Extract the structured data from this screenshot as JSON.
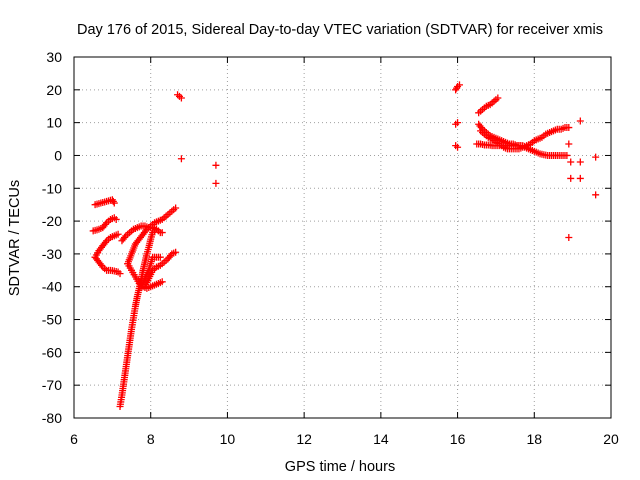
{
  "chart_data": {
    "type": "scatter",
    "title": "Day 176 of 2015, Sidereal Day-to-day VTEC variation (SDTVAR) for receiver xmis",
    "xlabel": "GPS time / hours",
    "ylabel": "SDTVAR / TECUs",
    "xlim": [
      6,
      20
    ],
    "ylim": [
      -80,
      30
    ],
    "xticks": [
      "6",
      "8",
      "10",
      "12",
      "14",
      "16",
      "18",
      "20"
    ],
    "yticks": [
      "-80",
      "-70",
      "-60",
      "-50",
      "-40",
      "-30",
      "-20",
      "-10",
      "0",
      "10",
      "20",
      "30"
    ],
    "grid": true,
    "marker": "+",
    "marker_color": "#ff0000",
    "segments": [
      {
        "points": [
          [
            6.55,
            -15
          ],
          [
            6.7,
            -14.5
          ],
          [
            6.85,
            -14
          ],
          [
            7.0,
            -13.5
          ],
          [
            7.05,
            -14.5
          ]
        ]
      },
      {
        "points": [
          [
            6.5,
            -23
          ],
          [
            6.65,
            -22.5
          ],
          [
            6.75,
            -22
          ],
          [
            6.85,
            -20.5
          ],
          [
            6.95,
            -19.5
          ],
          [
            7.05,
            -19
          ],
          [
            7.1,
            -19.5
          ]
        ]
      },
      {
        "points": [
          [
            6.55,
            -31
          ],
          [
            6.65,
            -32.5
          ],
          [
            6.75,
            -34
          ],
          [
            6.85,
            -35
          ],
          [
            6.95,
            -35
          ],
          [
            7.05,
            -35.2
          ],
          [
            7.15,
            -35.5
          ],
          [
            7.2,
            -36
          ]
        ]
      },
      {
        "points": [
          [
            6.55,
            -31
          ],
          [
            6.65,
            -29
          ],
          [
            6.75,
            -27.5
          ],
          [
            6.85,
            -26
          ],
          [
            6.95,
            -25
          ],
          [
            7.05,
            -24.5
          ],
          [
            7.15,
            -24
          ]
        ]
      },
      {
        "points": [
          [
            7.25,
            -26
          ],
          [
            7.35,
            -24.5
          ],
          [
            7.45,
            -23.5
          ],
          [
            7.55,
            -22.5
          ],
          [
            7.65,
            -22
          ],
          [
            7.75,
            -21.5
          ],
          [
            7.85,
            -21.5
          ],
          [
            7.95,
            -22
          ],
          [
            8.05,
            -22
          ],
          [
            8.15,
            -22.5
          ],
          [
            8.25,
            -23.5
          ],
          [
            8.3,
            -23.5
          ]
        ]
      },
      {
        "points": [
          [
            7.4,
            -33
          ],
          [
            7.5,
            -30
          ],
          [
            7.6,
            -27
          ],
          [
            7.7,
            -25.5
          ],
          [
            7.8,
            -24
          ],
          [
            7.9,
            -22.5
          ],
          [
            8.0,
            -21.5
          ],
          [
            8.1,
            -20.5
          ],
          [
            8.2,
            -20
          ],
          [
            8.3,
            -19.5
          ],
          [
            8.4,
            -18.5
          ],
          [
            8.5,
            -17.5
          ],
          [
            8.6,
            -16.5
          ],
          [
            8.65,
            -16
          ]
        ]
      },
      {
        "points": [
          [
            7.4,
            -33
          ],
          [
            7.5,
            -35
          ],
          [
            7.6,
            -37
          ],
          [
            7.7,
            -39
          ],
          [
            7.8,
            -40
          ],
          [
            7.9,
            -40.5
          ],
          [
            8.0,
            -40
          ],
          [
            8.1,
            -39.5
          ],
          [
            8.2,
            -39
          ],
          [
            8.3,
            -38.5
          ]
        ]
      },
      {
        "points": [
          [
            7.75,
            -40
          ],
          [
            7.85,
            -37.5
          ],
          [
            7.95,
            -35
          ],
          [
            8.0,
            -33
          ],
          [
            8.05,
            -31
          ],
          [
            8.15,
            -31
          ],
          [
            8.25,
            -31
          ]
        ]
      },
      {
        "points": [
          [
            7.85,
            -40
          ],
          [
            7.95,
            -37.5
          ],
          [
            8.05,
            -35
          ],
          [
            8.15,
            -34
          ],
          [
            8.25,
            -33.5
          ],
          [
            8.35,
            -32.5
          ],
          [
            8.45,
            -31.5
          ],
          [
            8.55,
            -30
          ],
          [
            8.65,
            -29.5
          ]
        ]
      },
      {
        "points": [
          [
            7.2,
            -76.5
          ],
          [
            7.25,
            -73
          ],
          [
            7.3,
            -69
          ],
          [
            7.35,
            -65
          ],
          [
            7.4,
            -61
          ],
          [
            7.45,
            -57
          ],
          [
            7.5,
            -53
          ],
          [
            7.55,
            -49.5
          ],
          [
            7.6,
            -46
          ],
          [
            7.65,
            -43
          ],
          [
            7.7,
            -40.5
          ],
          [
            7.75,
            -38
          ],
          [
            7.8,
            -35
          ],
          [
            7.85,
            -32.5
          ],
          [
            7.9,
            -30
          ],
          [
            7.95,
            -28
          ],
          [
            8.0,
            -25.5
          ],
          [
            8.05,
            -23.5
          ],
          [
            8.1,
            -23
          ]
        ]
      },
      {
        "points": [
          [
            8.7,
            18.5
          ],
          [
            8.75,
            18
          ],
          [
            8.8,
            17.5
          ]
        ]
      },
      {
        "points": [
          [
            8.8,
            -1
          ]
        ]
      },
      {
        "points": [
          [
            9.7,
            -3
          ]
        ]
      },
      {
        "points": [
          [
            9.7,
            -8.5
          ]
        ]
      },
      {
        "points": [
          [
            15.95,
            20
          ],
          [
            16.0,
            21
          ],
          [
            16.05,
            21.5
          ]
        ]
      },
      {
        "points": [
          [
            15.95,
            9.5
          ],
          [
            16.0,
            10
          ]
        ]
      },
      {
        "points": [
          [
            15.95,
            3
          ],
          [
            16.0,
            2.5
          ]
        ]
      },
      {
        "points": [
          [
            16.55,
            13
          ],
          [
            16.65,
            14
          ],
          [
            16.75,
            15
          ],
          [
            16.85,
            15.5
          ],
          [
            16.95,
            16.5
          ],
          [
            17.05,
            17.5
          ]
        ]
      },
      {
        "points": [
          [
            16.55,
            9.5
          ],
          [
            16.65,
            8
          ],
          [
            16.75,
            7
          ],
          [
            16.85,
            6
          ],
          [
            16.95,
            5.5
          ],
          [
            17.05,
            5
          ],
          [
            17.15,
            4.5
          ],
          [
            17.25,
            4
          ],
          [
            17.35,
            3.5
          ],
          [
            17.45,
            3.5
          ],
          [
            17.55,
            3
          ],
          [
            17.65,
            3
          ],
          [
            17.75,
            2.5
          ],
          [
            17.85,
            2
          ],
          [
            17.95,
            1.5
          ],
          [
            18.05,
            1
          ],
          [
            18.15,
            0.5
          ],
          [
            18.25,
            0.2
          ],
          [
            18.35,
            0
          ],
          [
            18.45,
            0
          ],
          [
            18.55,
            0
          ],
          [
            18.65,
            0
          ],
          [
            18.75,
            0
          ],
          [
            18.85,
            0
          ]
        ]
      },
      {
        "points": [
          [
            16.6,
            7.5
          ],
          [
            16.7,
            6.5
          ],
          [
            16.8,
            5.5
          ],
          [
            16.9,
            5
          ],
          [
            17.0,
            4
          ],
          [
            17.1,
            3.5
          ],
          [
            17.2,
            2.5
          ],
          [
            17.3,
            2
          ],
          [
            17.4,
            2
          ],
          [
            17.5,
            2
          ],
          [
            17.6,
            2
          ],
          [
            17.7,
            2.5
          ],
          [
            17.8,
            3
          ],
          [
            17.9,
            3.5
          ],
          [
            18.0,
            4.5
          ],
          [
            18.1,
            5
          ],
          [
            18.2,
            5.5
          ],
          [
            18.3,
            6.5
          ],
          [
            18.4,
            7
          ],
          [
            18.5,
            7.5
          ],
          [
            18.6,
            8
          ],
          [
            18.7,
            8
          ],
          [
            18.8,
            8.5
          ],
          [
            18.9,
            8.5
          ]
        ]
      },
      {
        "points": [
          [
            16.5,
            3.5
          ],
          [
            16.6,
            3.5
          ],
          [
            16.7,
            3.2
          ],
          [
            16.8,
            3.2
          ],
          [
            16.9,
            3
          ],
          [
            17.0,
            3
          ],
          [
            17.1,
            3
          ],
          [
            17.2,
            3
          ],
          [
            17.3,
            3
          ],
          [
            17.4,
            3
          ],
          [
            17.5,
            3
          ],
          [
            17.6,
            3
          ],
          [
            17.7,
            3
          ]
        ]
      },
      {
        "points": [
          [
            18.9,
            3.5
          ]
        ]
      },
      {
        "points": [
          [
            18.95,
            -2
          ]
        ]
      },
      {
        "points": [
          [
            18.95,
            -7
          ]
        ]
      },
      {
        "points": [
          [
            18.9,
            -25
          ]
        ]
      },
      {
        "points": [
          [
            19.2,
            10.5
          ]
        ]
      },
      {
        "points": [
          [
            19.2,
            -2
          ]
        ]
      },
      {
        "points": [
          [
            19.2,
            -7
          ]
        ]
      },
      {
        "points": [
          [
            19.6,
            -0.5
          ]
        ]
      },
      {
        "points": [
          [
            19.6,
            -12
          ]
        ]
      }
    ]
  }
}
